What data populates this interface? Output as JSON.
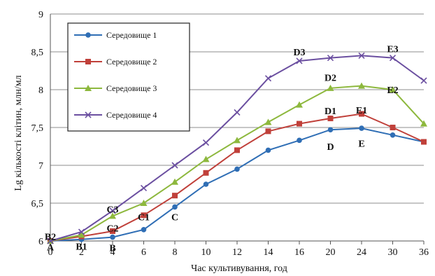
{
  "chart_data": {
    "type": "line",
    "title": "",
    "xlabel": "Час культивування, год",
    "ylabel": "Lg кількості клітин, млн/мл",
    "x": [
      "0",
      "2",
      "4",
      "6",
      "8",
      "10",
      "12",
      "14",
      "16",
      "20",
      "24",
      "30",
      "36"
    ],
    "ylim": [
      6,
      9
    ],
    "yticks": [
      "6",
      "6,5",
      "7",
      "7,5",
      "8",
      "8,5",
      "9"
    ],
    "grid": "horizontal",
    "legend": "top-left",
    "series": [
      {
        "name": "Середовище 1",
        "color": "#2f6eb5",
        "marker": "circle",
        "values": [
          6.0,
          6.02,
          6.05,
          6.15,
          6.45,
          6.75,
          6.95,
          7.2,
          7.33,
          7.47,
          7.49,
          7.4,
          7.31
        ]
      },
      {
        "name": "Середовище 2",
        "color": "#c0403a",
        "marker": "square",
        "values": [
          6.0,
          6.06,
          6.13,
          6.34,
          6.6,
          6.9,
          7.2,
          7.45,
          7.55,
          7.62,
          7.68,
          7.5,
          7.31
        ]
      },
      {
        "name": "Середовище 3",
        "color": "#8db83d",
        "marker": "triangle",
        "values": [
          6.0,
          6.08,
          6.33,
          6.5,
          6.78,
          7.08,
          7.33,
          7.57,
          7.8,
          8.02,
          8.05,
          8.0,
          7.55
        ]
      },
      {
        "name": "Середовище 4",
        "color": "#6b4fa0",
        "marker": "cross",
        "values": [
          6.0,
          6.12,
          6.4,
          6.7,
          7.0,
          7.3,
          7.7,
          8.15,
          8.38,
          8.42,
          8.45,
          8.42,
          8.12
        ]
      }
    ],
    "annotations": [
      {
        "text": "A",
        "x": "0",
        "y": 5.92
      },
      {
        "text": "B2",
        "x": "0",
        "y": 6.06
      },
      {
        "text": "B1",
        "x": "2",
        "y": 5.93
      },
      {
        "text": "B",
        "x": "4",
        "y": 5.91
      },
      {
        "text": "C2",
        "x": "4",
        "y": 6.17
      },
      {
        "text": "C3",
        "x": "4",
        "y": 6.42
      },
      {
        "text": "C1",
        "x": "6",
        "y": 6.32
      },
      {
        "text": "C",
        "x": "8",
        "y": 6.32
      },
      {
        "text": "D3",
        "x": "16",
        "y": 8.5
      },
      {
        "text": "D2",
        "x": "20",
        "y": 8.16
      },
      {
        "text": "D1",
        "x": "20",
        "y": 7.72
      },
      {
        "text": "D",
        "x": "20",
        "y": 7.25
      },
      {
        "text": "E1",
        "x": "24",
        "y": 7.73
      },
      {
        "text": "E",
        "x": "24",
        "y": 7.29
      },
      {
        "text": "E2",
        "x": "30",
        "y": 8.0
      },
      {
        "text": "E3",
        "x": "30",
        "y": 8.54
      }
    ]
  }
}
